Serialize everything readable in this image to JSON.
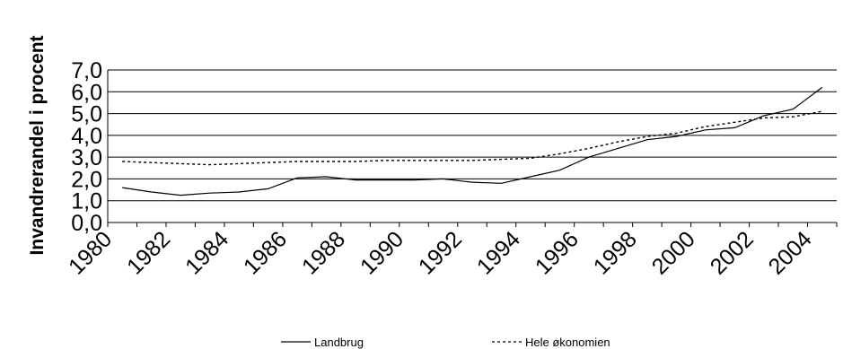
{
  "chart_data": {
    "type": "line",
    "title": "",
    "xlabel": "",
    "ylabel": "Invandrerandel i procent",
    "x": [
      1980,
      1981,
      1982,
      1983,
      1984,
      1985,
      1986,
      1987,
      1988,
      1989,
      1990,
      1991,
      1992,
      1993,
      1994,
      1995,
      1996,
      1997,
      1998,
      1999,
      2000,
      2001,
      2002,
      2003,
      2004
    ],
    "x_tick_labels": [
      "1980",
      "1982",
      "1984",
      "1986",
      "1988",
      "1990",
      "1992",
      "1994",
      "1996",
      "1998",
      "2000",
      "2002",
      "2004"
    ],
    "y_tick_labels": [
      "0,0",
      "1,0",
      "2,0",
      "3,0",
      "4,0",
      "5,0",
      "6,0",
      "7,0"
    ],
    "ylim": [
      0,
      7
    ],
    "grid": true,
    "legend_position": "bottom",
    "series": [
      {
        "name": "Landbrug",
        "style": "solid",
        "color": "#000000",
        "values": [
          1.6,
          1.4,
          1.25,
          1.35,
          1.4,
          1.55,
          2.05,
          2.1,
          1.95,
          1.95,
          1.95,
          2.0,
          1.85,
          1.8,
          2.1,
          2.4,
          3.0,
          3.4,
          3.8,
          3.95,
          4.25,
          4.35,
          4.9,
          5.2,
          6.2
        ]
      },
      {
        "name": "Hele økonomien",
        "style": "dotted",
        "color": "#000000",
        "values": [
          2.8,
          2.75,
          2.7,
          2.65,
          2.7,
          2.75,
          2.8,
          2.8,
          2.8,
          2.85,
          2.85,
          2.85,
          2.85,
          2.9,
          2.95,
          3.15,
          3.4,
          3.7,
          3.95,
          4.1,
          4.4,
          4.6,
          4.8,
          4.85,
          5.1
        ]
      }
    ]
  }
}
